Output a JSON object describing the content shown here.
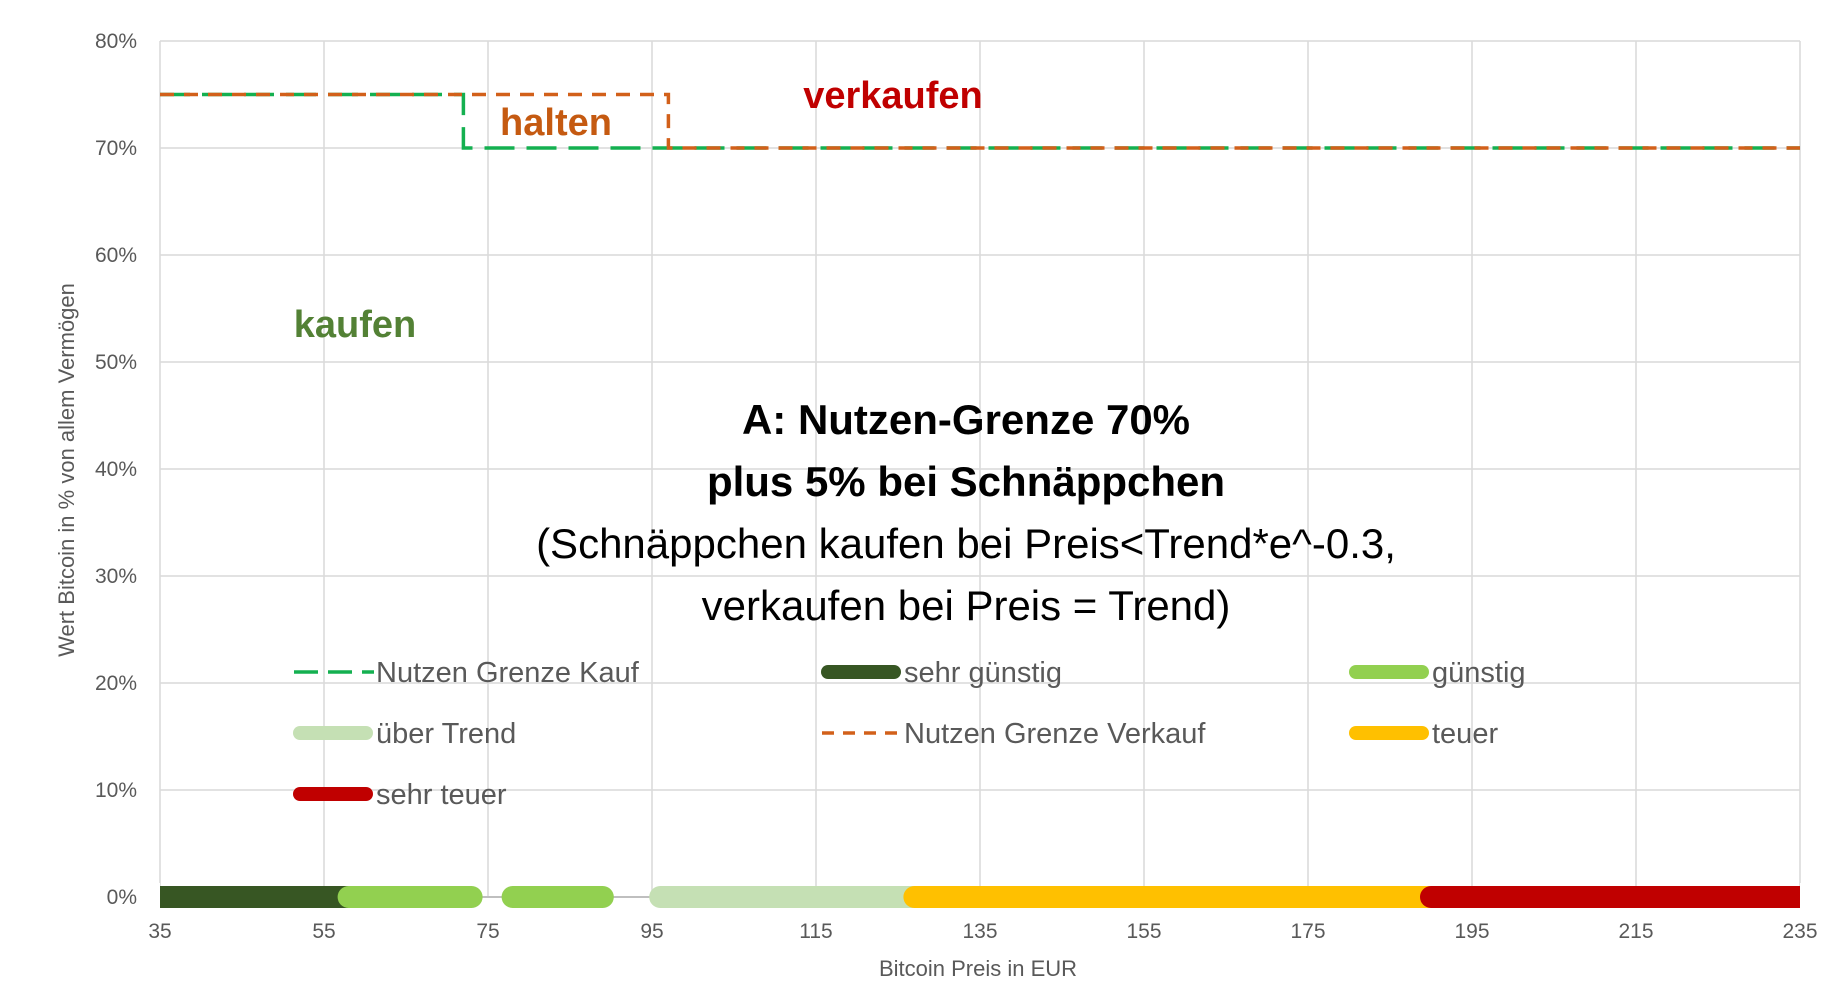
{
  "chart_data": {
    "type": "line",
    "xlabel": "Bitcoin Preis in EUR",
    "ylabel": "Wert Bitcoin in % von allem Vermögen",
    "xlim": [
      35,
      235
    ],
    "ylim": [
      0,
      80
    ],
    "x_ticks": [
      35,
      55,
      75,
      95,
      115,
      135,
      155,
      175,
      195,
      215,
      235
    ],
    "y_ticks": [
      0,
      10,
      20,
      30,
      40,
      50,
      60,
      70,
      80
    ],
    "y_tick_labels": [
      "0%",
      "10%",
      "20%",
      "30%",
      "40%",
      "50%",
      "60%",
      "70%",
      "80%"
    ],
    "grid": true,
    "colors": {
      "kauf": "#14b050",
      "verkauf": "#d2601a",
      "sehr_guenstig": "#375623",
      "guenstig": "#92d050",
      "ueber_trend": "#c5e0b4",
      "teuer": "#ffc000",
      "sehr_teuer": "#c00000",
      "label_kaufen": "#538135",
      "label_halten": "#c55a11",
      "label_verkaufen": "#c00000"
    },
    "series": [
      {
        "name": "Nutzen Grenze Kauf",
        "style": "long-dash",
        "x": [
          35,
          72,
          72,
          235
        ],
        "y": [
          75,
          75,
          70,
          70
        ]
      },
      {
        "name": "Nutzen Grenze Verkauf",
        "style": "short-dash",
        "x": [
          35,
          97,
          97,
          235
        ],
        "y": [
          75,
          75,
          70,
          70
        ]
      }
    ],
    "bands": [
      {
        "name": "sehr günstig",
        "x0": 35,
        "x1": 58
      },
      {
        "name": "günstig",
        "x0": 58,
        "x1": 73
      },
      {
        "name": "günstig",
        "x0": 78,
        "x1": 89
      },
      {
        "name": "über Trend",
        "x0": 96,
        "x1": 127
      },
      {
        "name": "teuer",
        "x0": 127,
        "x1": 190
      },
      {
        "name": "sehr teuer",
        "x0": 190,
        "x1": 235
      }
    ],
    "region_labels": {
      "kaufen": "kaufen",
      "halten": "halten",
      "verkaufen": "verkaufen"
    },
    "annotation": {
      "line1": "A: Nutzen-Grenze 70%",
      "line2": "plus 5% bei Schnäppchen",
      "line3": "(Schnäppchen kaufen bei Preis<Trend*e^-0.3,",
      "line4": "verkaufen bei Preis = Trend)"
    },
    "legend": [
      {
        "label": "Nutzen Grenze Kauf",
        "kind": "long-dash",
        "color": "#14b050"
      },
      {
        "label": "sehr günstig",
        "kind": "bar",
        "color": "#375623"
      },
      {
        "label": "günstig",
        "kind": "bar",
        "color": "#92d050"
      },
      {
        "label": "über Trend",
        "kind": "bar",
        "color": "#c5e0b4"
      },
      {
        "label": "Nutzen Grenze Verkauf",
        "kind": "short-dash",
        "color": "#d2601a"
      },
      {
        "label": "teuer",
        "kind": "bar",
        "color": "#ffc000"
      },
      {
        "label": "sehr teuer",
        "kind": "bar",
        "color": "#c00000"
      }
    ]
  }
}
